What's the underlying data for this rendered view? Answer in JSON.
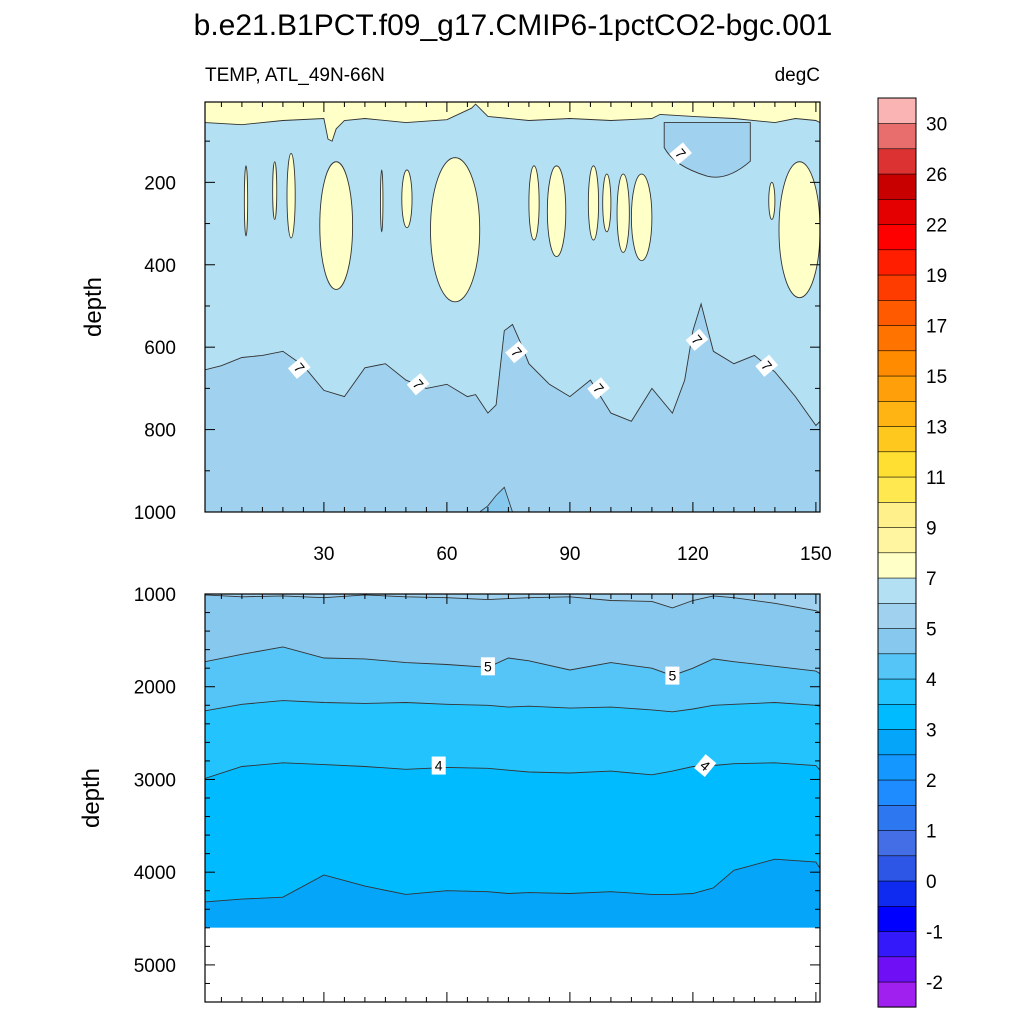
{
  "chart_data": [
    {
      "type": "contour",
      "panel": "upper",
      "title": "b.e21.B1PCT.f09_g17.CMIP6-1pctCO2-bgc.001",
      "left_string": "TEMP, ATL_49N-66N",
      "right_string": "degC",
      "ylabel": "depth",
      "xlim": [
        1,
        151
      ],
      "ylim": [
        1000,
        5
      ],
      "x_ticks": [
        30,
        60,
        90,
        120,
        150
      ],
      "y_ticks": [
        200,
        400,
        600,
        800,
        1000
      ],
      "contour_labels": [
        {
          "text": "7",
          "x": 117,
          "y": 130
        },
        {
          "text": "7",
          "x": 24,
          "y": 650
        },
        {
          "text": "7",
          "x": 53,
          "y": 690
        },
        {
          "text": "7",
          "x": 77,
          "y": 612
        },
        {
          "text": "7",
          "x": 97,
          "y": 700
        },
        {
          "text": "7",
          "x": 121,
          "y": 582
        },
        {
          "text": "7",
          "x": 138,
          "y": 645
        }
      ],
      "isotherm_7": {
        "x": [
          1,
          5,
          10,
          15,
          20,
          25,
          30,
          35,
          40,
          45,
          50,
          55,
          60,
          65,
          67,
          70,
          72,
          74,
          76,
          78,
          80,
          85,
          90,
          95,
          100,
          105,
          110,
          115,
          118,
          120,
          122,
          125,
          130,
          135,
          140,
          145,
          150,
          151
        ],
        "depth": [
          655,
          645,
          625,
          620,
          610,
          645,
          705,
          720,
          650,
          640,
          680,
          700,
          690,
          720,
          715,
          760,
          740,
          560,
          545,
          590,
          640,
          690,
          720,
          680,
          760,
          780,
          700,
          760,
          680,
          560,
          495,
          610,
          640,
          620,
          660,
          720,
          790,
          780
        ]
      },
      "isotherm_6_bottom": {
        "x": [
          68,
          70,
          72,
          74,
          76
        ],
        "depth": [
          1000,
          985,
          960,
          940,
          1000
        ]
      },
      "warm_surface_layer_depth": {
        "x": [
          1,
          10,
          20,
          30,
          31,
          32,
          33,
          34,
          35,
          40,
          50,
          60,
          66,
          67,
          70,
          80,
          90,
          100,
          110,
          112,
          120,
          130,
          140,
          145,
          150,
          151
        ],
        "depth": [
          55,
          60,
          50,
          45,
          95,
          100,
          70,
          60,
          50,
          45,
          55,
          48,
          20,
          10,
          40,
          50,
          45,
          50,
          45,
          35,
          40,
          45,
          55,
          45,
          50,
          55
        ]
      },
      "cool_pocket_7": {
        "x_range": [
          113,
          134
        ],
        "depth_range": [
          55,
          185
        ]
      },
      "warm_blobs_above_7": [
        {
          "x_range": [
            10.6,
            11.4
          ],
          "depth_range": [
            160,
            330
          ]
        },
        {
          "x_range": [
            17.5,
            18.5
          ],
          "depth_range": [
            150,
            290
          ]
        },
        {
          "x_range": [
            21,
            23
          ],
          "depth_range": [
            130,
            335
          ]
        },
        {
          "x_range": [
            29,
            37
          ],
          "depth_range": [
            150,
            460
          ]
        },
        {
          "x_range": [
            43.8,
            44.4
          ],
          "depth_range": [
            170,
            320
          ]
        },
        {
          "x_range": [
            49,
            51.5
          ],
          "depth_range": [
            170,
            310
          ]
        },
        {
          "x_range": [
            56,
            68
          ],
          "depth_range": [
            140,
            490
          ]
        },
        {
          "x_range": [
            80,
            82.5
          ],
          "depth_range": [
            160,
            340
          ]
        },
        {
          "x_range": [
            84.5,
            89
          ],
          "depth_range": [
            160,
            380
          ]
        },
        {
          "x_range": [
            94.5,
            97
          ],
          "depth_range": [
            160,
            340
          ]
        },
        {
          "x_range": [
            98,
            100
          ],
          "depth_range": [
            180,
            320
          ]
        },
        {
          "x_range": [
            101.5,
            104.5
          ],
          "depth_range": [
            180,
            370
          ]
        },
        {
          "x_range": [
            105,
            110
          ],
          "depth_range": [
            180,
            390
          ]
        },
        {
          "x_range": [
            138.5,
            140
          ],
          "depth_range": [
            200,
            290
          ]
        },
        {
          "x_range": [
            141,
            151
          ],
          "depth_range": [
            150,
            480
          ]
        }
      ]
    },
    {
      "type": "contour",
      "panel": "lower",
      "ylabel": "depth",
      "xlim": [
        1,
        151
      ],
      "ylim": [
        5400,
        1000
      ],
      "y_ticks": [
        1000,
        2000,
        3000,
        4000,
        5000
      ],
      "ocean_floor_depth": 4600,
      "contour_labels": [
        {
          "text": "5",
          "x": 70,
          "y": 1780
        },
        {
          "text": "5",
          "x": 115,
          "y": 1880
        },
        {
          "text": "4",
          "x": 58,
          "y": 2850
        },
        {
          "text": "4",
          "x": 123,
          "y": 2850
        }
      ],
      "x": [
        1,
        10,
        20,
        30,
        40,
        50,
        60,
        70,
        75,
        80,
        90,
        100,
        110,
        115,
        120,
        125,
        130,
        140,
        150,
        151
      ],
      "isotherms": [
        {
          "level": 6,
          "depth": [
            1010,
            1030,
            1020,
            1040,
            1010,
            1030,
            1040,
            1060,
            1050,
            1040,
            1030,
            1070,
            1080,
            1150,
            1070,
            1020,
            1040,
            1100,
            1180,
            1200
          ]
        },
        {
          "level": 5,
          "depth": [
            1730,
            1650,
            1570,
            1690,
            1700,
            1740,
            1760,
            1790,
            1690,
            1720,
            1820,
            1740,
            1800,
            1880,
            1800,
            1700,
            1730,
            1780,
            1830,
            1860
          ]
        },
        {
          "level": 4.5,
          "depth": [
            2260,
            2190,
            2150,
            2170,
            2180,
            2170,
            2190,
            2200,
            2220,
            2210,
            2230,
            2220,
            2250,
            2270,
            2240,
            2200,
            2190,
            2170,
            2200,
            2210
          ]
        },
        {
          "level": 4,
          "depth": [
            2990,
            2860,
            2820,
            2840,
            2860,
            2890,
            2870,
            2880,
            2900,
            2920,
            2930,
            2910,
            2950,
            2910,
            2860,
            2850,
            2830,
            2820,
            2850,
            2900
          ]
        },
        {
          "level": 3,
          "depth": [
            4320,
            4290,
            4270,
            4030,
            4150,
            4240,
            4200,
            4210,
            4230,
            4220,
            4230,
            4210,
            4240,
            4240,
            4230,
            4170,
            3980,
            3860,
            3890,
            3960
          ]
        }
      ]
    },
    {
      "type": "colorbar",
      "labels": [
        "-2",
        "-1",
        "0",
        "1",
        "2",
        "3",
        "4",
        "5",
        "7",
        "9",
        "11",
        "13",
        "15",
        "17",
        "19",
        "22",
        "26",
        "30"
      ],
      "colors": [
        "#a020f0",
        "#6e0ff6",
        "#3419fa",
        "#0000ff",
        "#0f2bf0",
        "#2d56e6",
        "#436ee6",
        "#2d78f0",
        "#1e8cff",
        "#1498ff",
        "#05a5fa",
        "#00bbff",
        "#23c4fd",
        "#55c4f6",
        "#87c8ee",
        "#a0d2f0",
        "#b4e0f3",
        "#ffffc8",
        "#fff5a0",
        "#fff08c",
        "#ffe850",
        "#ffe032",
        "#ffc81e",
        "#ffb414",
        "#ffa00a",
        "#ff8c00",
        "#ff7300",
        "#ff5a00",
        "#ff3c00",
        "#ff1e00",
        "#ff0000",
        "#e40000",
        "#c80000",
        "#dc3232",
        "#e86e6e",
        "#fbb4b4"
      ]
    }
  ]
}
